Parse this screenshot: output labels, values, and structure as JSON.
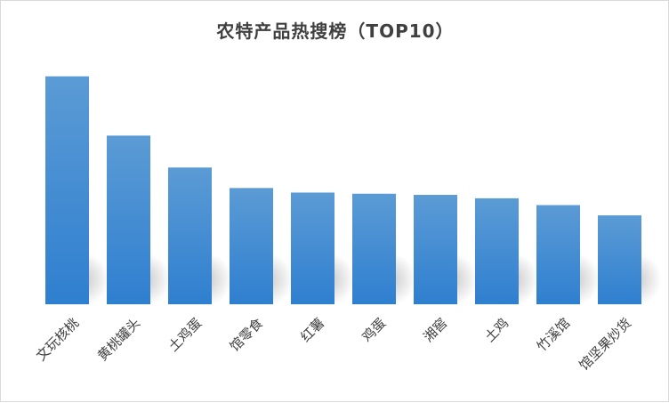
{
  "chart_data": {
    "type": "bar",
    "title": "农特产品热搜榜（TOP10）",
    "categories": [
      "文玩核桃",
      "黄桃罐头",
      "土鸡蛋",
      "馆零食",
      "红薯",
      "鸡蛋",
      "湘窖",
      "土鸡",
      "竹溪馆",
      "馆坚果炒货"
    ],
    "values": [
      100,
      74,
      60,
      51,
      49,
      48.5,
      48,
      46.5,
      43.5,
      39
    ],
    "ylim": [
      0,
      105
    ],
    "grid": false,
    "legend": "none",
    "colors": {
      "bar_top": "#5b9bd5",
      "bar_bottom": "#2f7fd0",
      "text": "#404040"
    }
  }
}
